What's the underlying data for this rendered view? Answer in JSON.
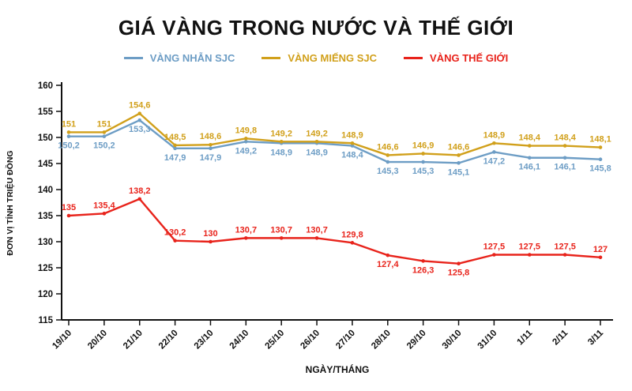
{
  "chart_data": {
    "type": "line",
    "title": "GIÁ VÀNG TRONG NƯỚC VÀ THẾ GIỚI",
    "xlabel": "NGÀY/THÁNG",
    "ylabel": "ĐƠN VỊ TÍNH TRIỆU ĐỒNG",
    "ylim": [
      115,
      160
    ],
    "yticks": [
      115,
      120,
      125,
      130,
      135,
      140,
      145,
      150,
      155,
      160
    ],
    "grid": false,
    "legend_position": "top",
    "x": [
      "19/10",
      "20/10",
      "21/10",
      "22/10",
      "23/10",
      "24/10",
      "25/10",
      "26/10",
      "27/10",
      "28/10",
      "29/10",
      "30/10",
      "31/10",
      "1/11",
      "2/11",
      "3/11"
    ],
    "series": [
      {
        "id": "vang-nhan-sjc",
        "name": "VÀNG NHẪN SJC",
        "color": "#6d9dc5",
        "label_position": "below",
        "values": [
          150.2,
          150.2,
          153.3,
          147.9,
          147.9,
          149.2,
          148.9,
          148.9,
          148.4,
          145.3,
          145.3,
          145.1,
          147.2,
          146.1,
          146.1,
          145.8
        ]
      },
      {
        "id": "vang-mieng-sjc",
        "name": "VÀNG MIẾNG SJC",
        "color": "#d1a01b",
        "label_position": "above",
        "values": [
          151,
          151,
          154.6,
          148.5,
          148.6,
          149.8,
          149.2,
          149.2,
          148.9,
          146.6,
          146.9,
          146.6,
          148.9,
          148.4,
          148.4,
          148.1
        ]
      },
      {
        "id": "vang-the-gioi",
        "name": "VÀNG THẾ GIỚI",
        "color": "#e8231b",
        "label_position": "above",
        "label_below_indices": [
          9,
          10,
          11
        ],
        "values": [
          135,
          135.4,
          138.2,
          130.2,
          130,
          130.7,
          130.7,
          130.7,
          129.8,
          127.4,
          126.3,
          125.8,
          127.5,
          127.5,
          127.5,
          127
        ]
      }
    ]
  }
}
